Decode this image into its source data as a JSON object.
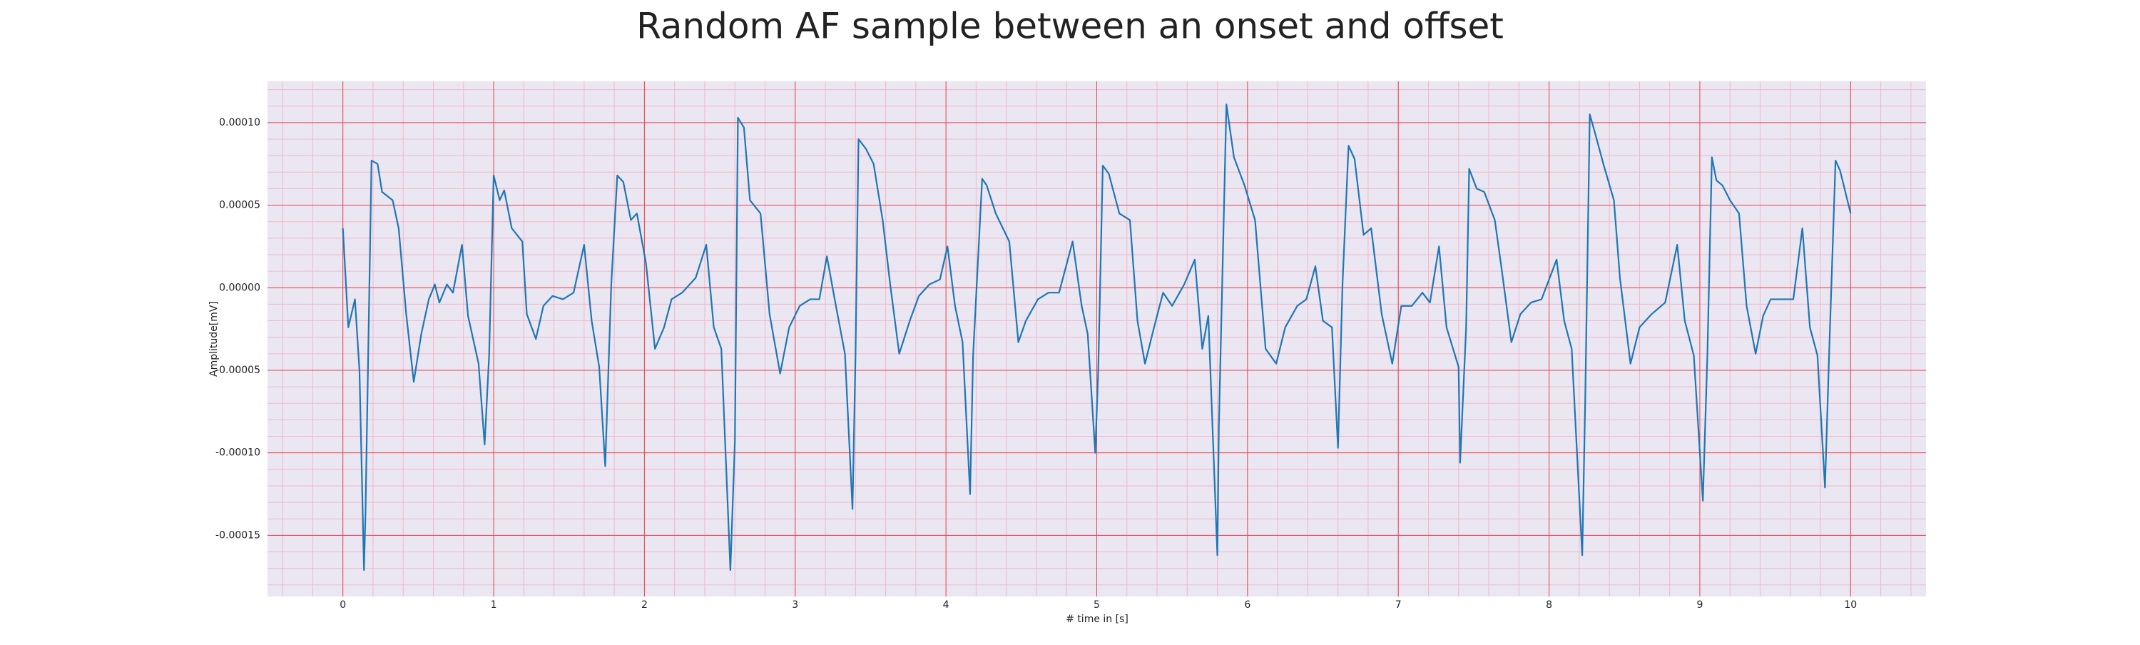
{
  "chart_data": {
    "type": "line",
    "title": "Random AF sample between an onset and offset",
    "xlabel": "# time in [s]",
    "ylabel": "Amplitude[mV]",
    "color": "#1f77b4",
    "grid": true,
    "minor_grid": true,
    "xlim": [
      -0.5,
      10.5
    ],
    "ylim": [
      -0.000187,
      0.000125
    ],
    "xticks": [
      0,
      1,
      2,
      3,
      4,
      5,
      6,
      7,
      8,
      9,
      10
    ],
    "yticks": [
      {
        "value": -0.00015,
        "label": "-0.00015"
      },
      {
        "value": -0.0001,
        "label": "-0.00010"
      },
      {
        "value": -5e-05,
        "label": "-0.00005"
      },
      {
        "value": 0,
        "label": "0.00000"
      },
      {
        "value": 5e-05,
        "label": "0.00005"
      },
      {
        "value": 0.0001,
        "label": "0.00010"
      }
    ],
    "x": [
      0,
      0.036,
      0.08,
      0.11,
      0.14,
      0.15,
      0.19,
      0.23,
      0.26,
      0.33,
      0.37,
      0.42,
      0.47,
      0.52,
      0.57,
      0.61,
      0.64,
      0.69,
      0.73,
      0.79,
      0.83,
      0.9,
      0.94,
      0.97,
      1.0,
      1.04,
      1.07,
      1.12,
      1.19,
      1.22,
      1.28,
      1.33,
      1.39,
      1.46,
      1.53,
      1.6,
      1.65,
      1.7,
      1.74,
      1.78,
      1.82,
      1.86,
      1.91,
      1.95,
      2.01,
      2.07,
      2.13,
      2.18,
      2.25,
      2.34,
      2.41,
      2.46,
      2.51,
      2.57,
      2.6,
      2.62,
      2.66,
      2.7,
      2.77,
      2.83,
      2.9,
      2.96,
      3.03,
      3.1,
      3.16,
      3.21,
      3.27,
      3.33,
      3.38,
      3.4,
      3.42,
      3.47,
      3.52,
      3.58,
      3.63,
      3.69,
      3.76,
      3.82,
      3.89,
      3.96,
      4.01,
      4.06,
      4.11,
      4.16,
      4.18,
      4.24,
      4.27,
      4.33,
      4.42,
      4.48,
      4.53,
      4.61,
      4.68,
      4.75,
      4.84,
      4.9,
      4.94,
      4.99,
      5.01,
      5.04,
      5.08,
      5.15,
      5.22,
      5.27,
      5.32,
      5.38,
      5.44,
      5.5,
      5.58,
      5.65,
      5.7,
      5.74,
      5.8,
      5.81,
      5.86,
      5.91,
      5.98,
      6.05,
      6.12,
      6.19,
      6.25,
      6.33,
      6.39,
      6.45,
      6.5,
      6.56,
      6.6,
      6.63,
      6.67,
      6.71,
      6.77,
      6.82,
      6.89,
      6.96,
      7.02,
      7.09,
      7.16,
      7.21,
      7.27,
      7.32,
      7.4,
      7.41,
      7.45,
      7.47,
      7.52,
      7.57,
      7.64,
      7.68,
      7.75,
      7.81,
      7.88,
      7.95,
      8.05,
      8.1,
      8.15,
      8.22,
      8.24,
      8.27,
      8.31,
      8.36,
      8.43,
      8.47,
      8.54,
      8.6,
      8.68,
      8.77,
      8.85,
      8.9,
      8.96,
      9.02,
      9.05,
      9.08,
      9.11,
      9.15,
      9.2,
      9.26,
      9.31,
      9.37,
      9.42,
      9.47,
      9.54,
      9.62,
      9.68,
      9.73,
      9.78,
      9.83,
      9.86,
      9.9,
      9.93,
      10.0
    ],
    "values": [
      3.6e-05,
      -2.4e-05,
      -7e-06,
      -5e-05,
      -0.000171,
      -0.000136,
      7.7e-05,
      7.5e-05,
      5.8e-05,
      5.3e-05,
      3.6e-05,
      -1.6e-05,
      -5.7e-05,
      -2.8e-05,
      -7e-06,
      2e-06,
      -9e-06,
      2e-06,
      -3e-06,
      2.6e-05,
      -1.7e-05,
      -4.6e-05,
      -9.5e-05,
      -4.1e-05,
      6.8e-05,
      5.3e-05,
      5.9e-05,
      3.6e-05,
      2.8e-05,
      -1.6e-05,
      -3.1e-05,
      -1.1e-05,
      -5e-06,
      -7e-06,
      -3e-06,
      2.6e-05,
      -2e-05,
      -4.8e-05,
      -0.000108,
      2e-06,
      6.8e-05,
      6.4e-05,
      4.1e-05,
      4.5e-05,
      1.5e-05,
      -3.7e-05,
      -2.4e-05,
      -7e-06,
      -3e-06,
      6e-06,
      2.6e-05,
      -2.4e-05,
      -3.7e-05,
      -0.000171,
      -9.3e-05,
      0.000103,
      9.7e-05,
      5.3e-05,
      4.5e-05,
      -1.6e-05,
      -5.2e-05,
      -2.4e-05,
      -1.1e-05,
      -7e-06,
      -7e-06,
      1.9e-05,
      -1.1e-05,
      -4e-05,
      -0.000134,
      -4.1e-05,
      9e-05,
      8.4e-05,
      7.5e-05,
      4.1e-05,
      2e-06,
      -4e-05,
      -2e-05,
      -5e-06,
      2e-06,
      5e-06,
      2.5e-05,
      -1.1e-05,
      -3.3e-05,
      -0.000125,
      -4.1e-05,
      6.6e-05,
      6.2e-05,
      4.5e-05,
      2.8e-05,
      -3.3e-05,
      -2e-05,
      -7e-06,
      -3e-06,
      -3e-06,
      2.8e-05,
      -1.1e-05,
      -2.8e-05,
      -0.0001,
      -5e-05,
      7.4e-05,
      6.9e-05,
      4.5e-05,
      4.1e-05,
      -2e-05,
      -4.6e-05,
      -2.4e-05,
      -3e-06,
      -1.1e-05,
      2e-06,
      1.7e-05,
      -3.7e-05,
      -1.7e-05,
      -0.000162,
      -8.4e-05,
      0.000111,
      7.9e-05,
      6.2e-05,
      4.1e-05,
      -3.7e-05,
      -4.6e-05,
      -2.4e-05,
      -1.1e-05,
      -7e-06,
      1.3e-05,
      -2e-05,
      -2.4e-05,
      -9.7e-05,
      2e-06,
      8.6e-05,
      7.8e-05,
      3.2e-05,
      3.6e-05,
      -1.6e-05,
      -4.6e-05,
      -1.1e-05,
      -1.1e-05,
      -3e-06,
      -9e-06,
      2.5e-05,
      -2.4e-05,
      -4.8e-05,
      -0.000106,
      -2.4e-05,
      7.2e-05,
      6e-05,
      5.8e-05,
      4.1e-05,
      1.5e-05,
      -3.3e-05,
      -1.6e-05,
      -9e-06,
      -7e-06,
      1.7e-05,
      -2e-05,
      -3.7e-05,
      -0.000162,
      -6.7e-05,
      0.000105,
      9.2e-05,
      7.5e-05,
      5.3e-05,
      6e-06,
      -4.6e-05,
      -2.4e-05,
      -1.6e-05,
      -9e-06,
      2.6e-05,
      -2e-05,
      -4.1e-05,
      -0.000129,
      -4.1e-05,
      7.9e-05,
      6.5e-05,
      6.2e-05,
      5.3e-05,
      4.5e-05,
      -1.1e-05,
      -4e-05,
      -1.7e-05,
      -7e-06,
      -7e-06,
      -7e-06,
      3.6e-05,
      -2.4e-05,
      -4.1e-05,
      -0.000121,
      -3.3e-05,
      7.7e-05,
      7.1e-05,
      4.5e-05
    ]
  }
}
